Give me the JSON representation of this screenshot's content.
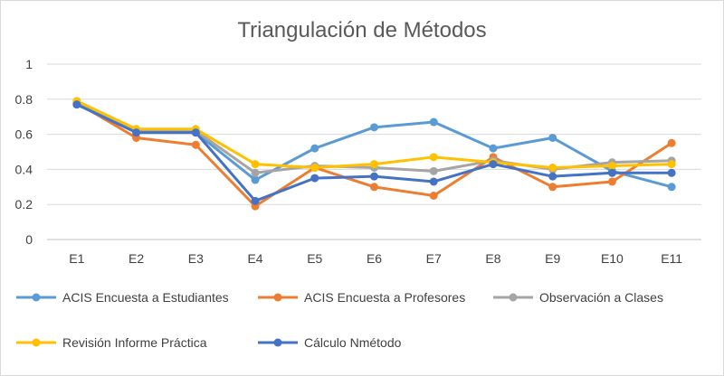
{
  "chart_data": {
    "type": "line",
    "title": "Triangulación de Métodos",
    "xlabel": "",
    "ylabel": "",
    "categories": [
      "E1",
      "E2",
      "E3",
      "E4",
      "E5",
      "E6",
      "E7",
      "E8",
      "E9",
      "E10",
      "E11"
    ],
    "ylim": [
      0,
      1
    ],
    "yticks": [
      0,
      0.2,
      0.4,
      0.6,
      0.8,
      1
    ],
    "ytick_labels": [
      "0",
      "0.2",
      "0.4",
      "0.6",
      "0.8",
      "1"
    ],
    "grid": "horizontal",
    "legend_position": "bottom",
    "series": [
      {
        "name": "ACIS Encuesta a Estudiantes",
        "color": "#5B9BD5",
        "values": [
          0.77,
          0.62,
          0.61,
          0.34,
          0.52,
          0.64,
          0.67,
          0.52,
          0.58,
          0.39,
          0.3
        ]
      },
      {
        "name": "ACIS Encuesta a Profesores",
        "color": "#ED7D31",
        "values": [
          0.78,
          0.58,
          0.54,
          0.19,
          0.41,
          0.3,
          0.25,
          0.47,
          0.3,
          0.33,
          0.55
        ]
      },
      {
        "name": "Observación a Clases",
        "color": "#A5A5A5",
        "values": [
          0.78,
          0.62,
          0.62,
          0.38,
          0.42,
          0.41,
          0.39,
          0.45,
          0.4,
          0.44,
          0.45
        ]
      },
      {
        "name": "Revisión Informe Práctica",
        "color": "#FFC000",
        "values": [
          0.79,
          0.63,
          0.63,
          0.43,
          0.41,
          0.43,
          0.47,
          0.44,
          0.41,
          0.42,
          0.43
        ]
      },
      {
        "name": "Cálculo Nmétodo",
        "color": "#4472C4",
        "values": [
          0.77,
          0.61,
          0.61,
          0.22,
          0.35,
          0.36,
          0.33,
          0.43,
          0.36,
          0.38,
          0.38
        ]
      }
    ]
  }
}
